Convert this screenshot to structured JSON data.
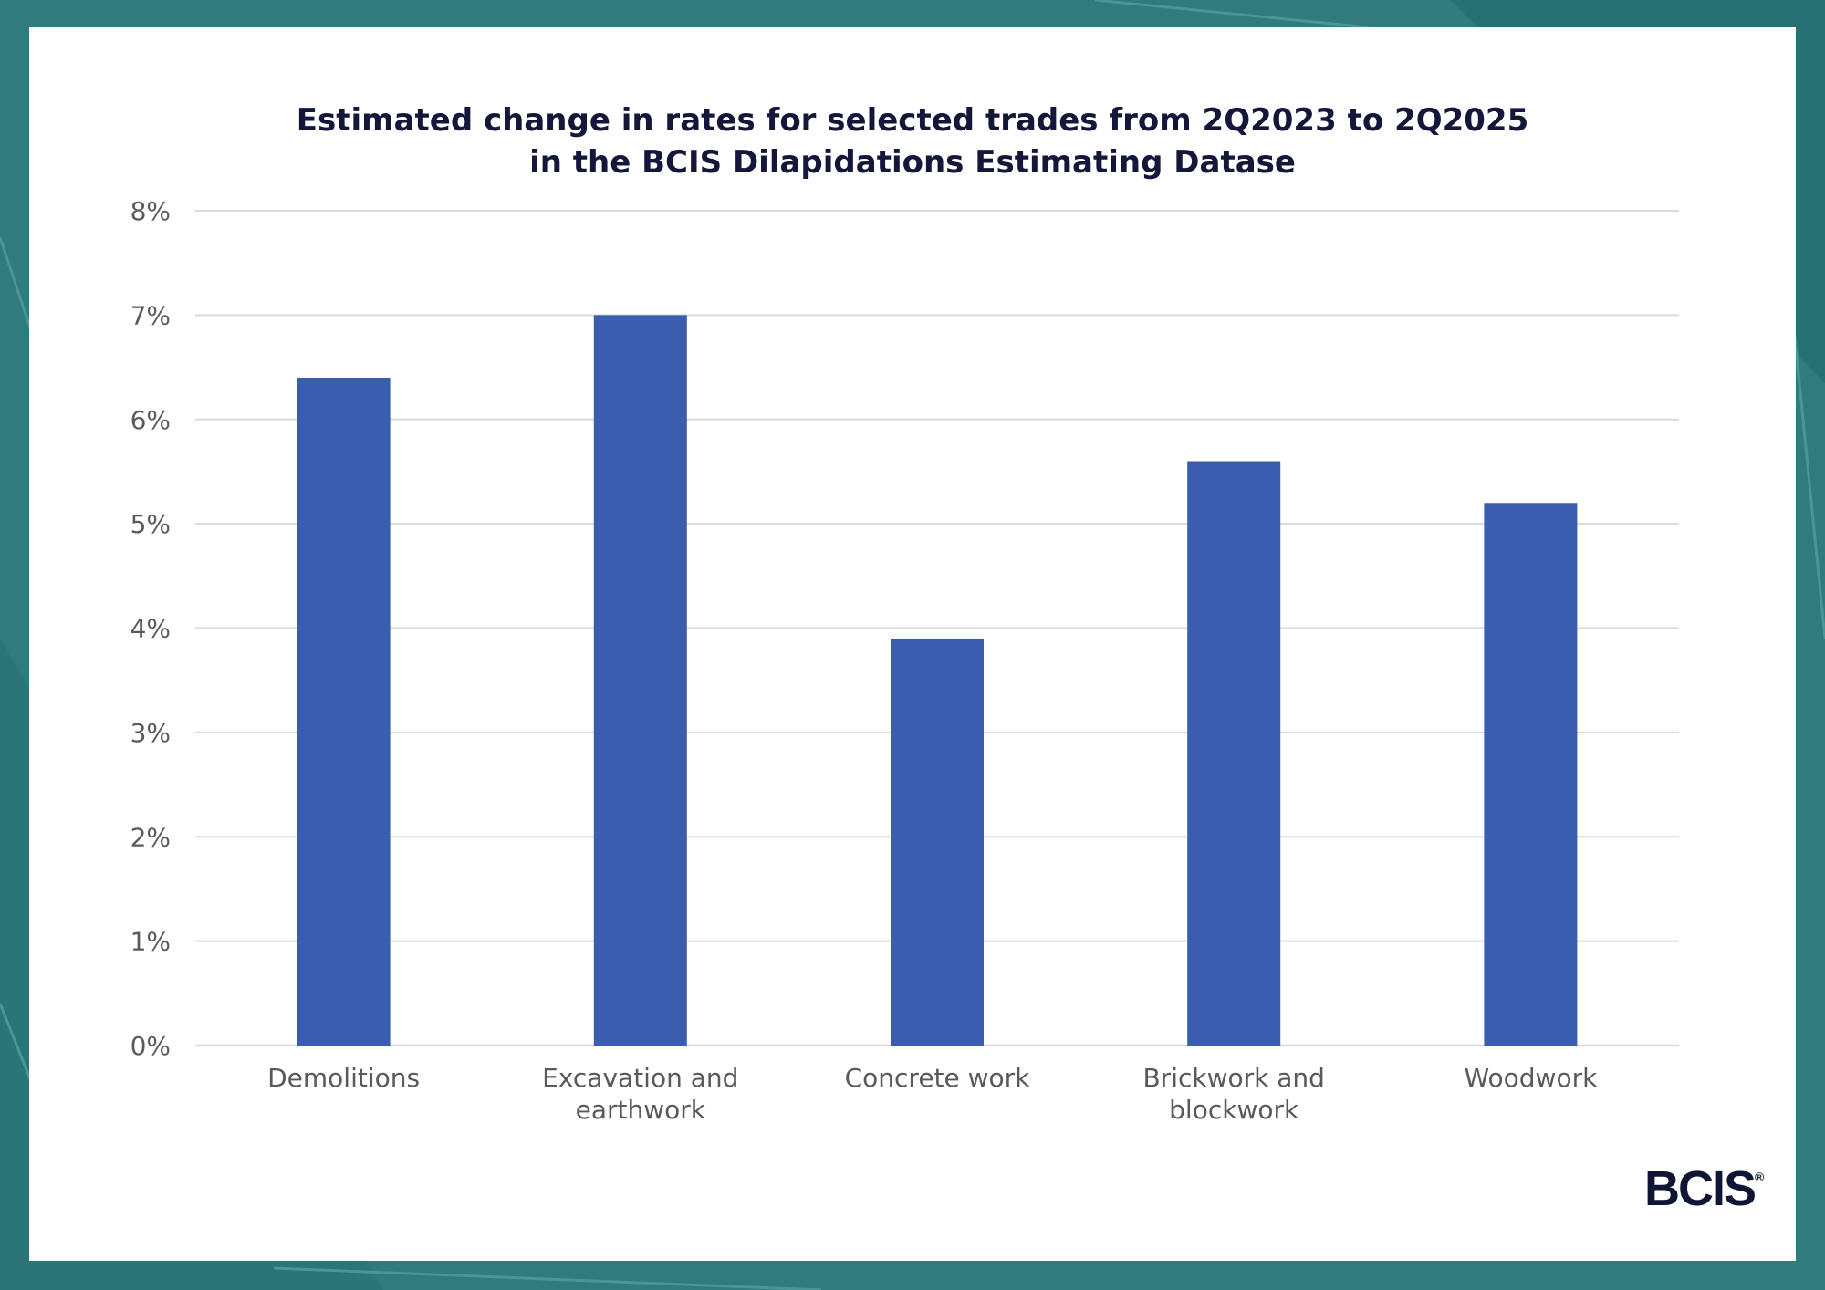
{
  "colors": {
    "background": "#2f7b7d",
    "bar": "#3a5daf",
    "grid": "#d9d9d9",
    "title": "#14163a",
    "logo": "#0e1535"
  },
  "logo": {
    "text": "BCIS",
    "mark": "®"
  },
  "chart_data": {
    "type": "bar",
    "title_lines": [
      "Estimated change in rates for selected trades from 2Q2023 to 2Q2025",
      "in the BCIS Dilapidations Estimating Datase"
    ],
    "categories": [
      [
        "Demolitions"
      ],
      [
        "Excavation and",
        "earthwork"
      ],
      [
        "Concrete work"
      ],
      [
        "Brickwork and",
        "blockwork"
      ],
      [
        "Woodwork"
      ]
    ],
    "values": [
      6.4,
      7.0,
      3.9,
      5.6,
      5.2
    ],
    "ylim": [
      0,
      8
    ],
    "y_ticks": [
      0,
      1,
      2,
      3,
      4,
      5,
      6,
      7,
      8
    ],
    "y_tick_labels": [
      "0%",
      "1%",
      "2%",
      "3%",
      "4%",
      "5%",
      "6%",
      "7%",
      "8%"
    ],
    "grid": true,
    "legend": "none"
  }
}
